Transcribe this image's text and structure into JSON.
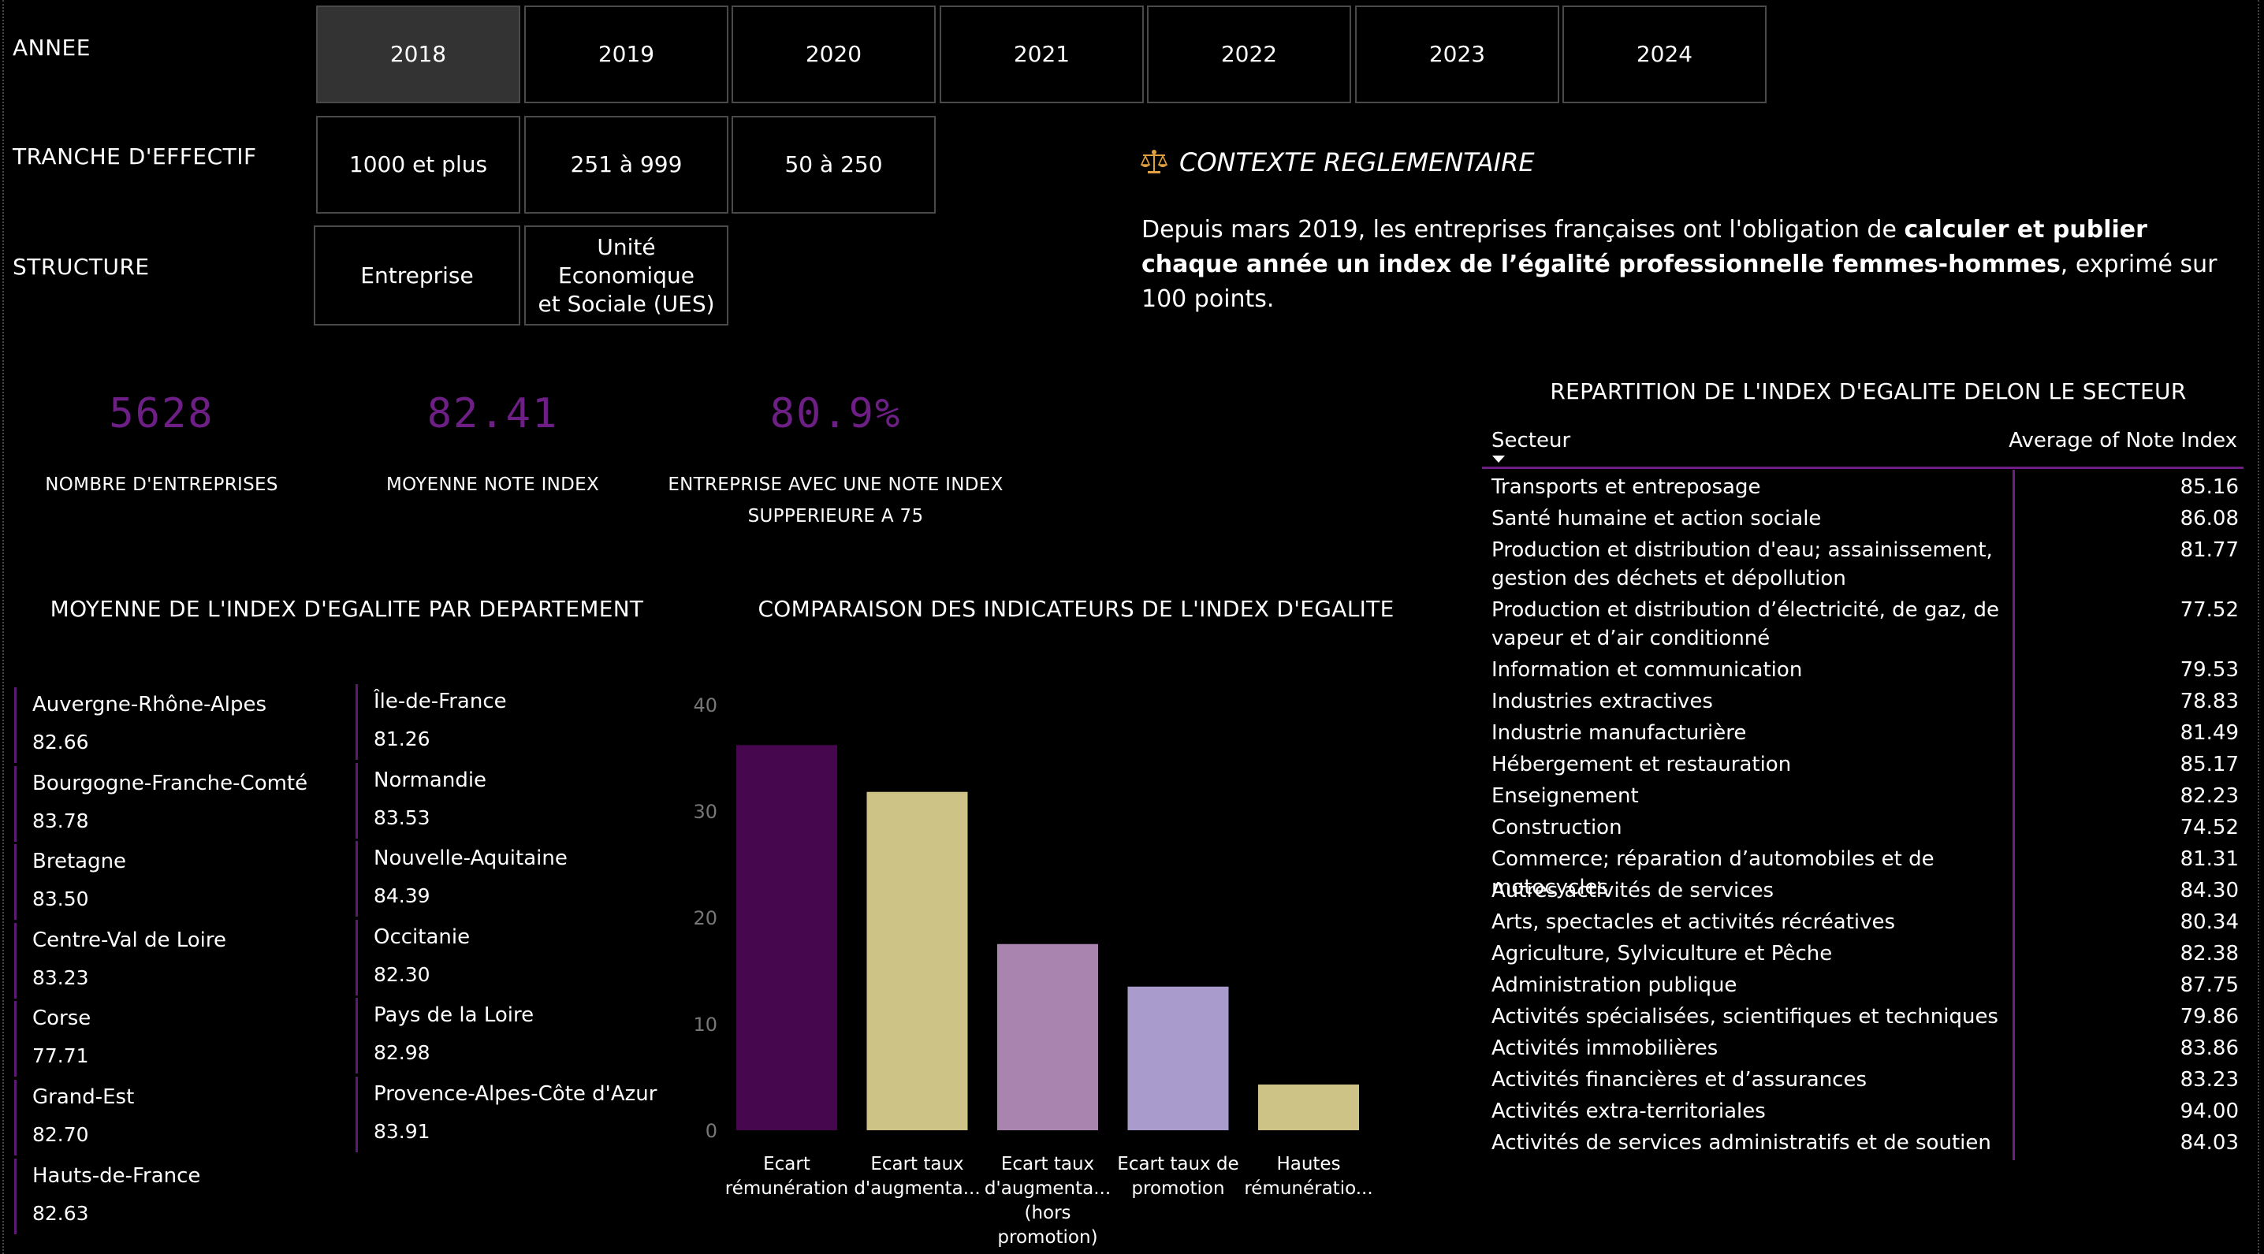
{
  "filters": {
    "annee_label": "ANNEE",
    "effectif_label": "TRANCHE D'EFFECTIF",
    "structure_label": "STRUCTURE",
    "years": [
      "2018",
      "2019",
      "2020",
      "2021",
      "2022",
      "2023",
      "2024"
    ],
    "selected_year": "2018",
    "effectif": [
      "1000 et plus",
      "251 à 999",
      "50 à 250"
    ],
    "structure_a": "Entreprise",
    "structure_b_line1": "Unité Economique",
    "structure_b_line2": "et Sociale (UES)"
  },
  "context": {
    "icon": "balance-scale-icon",
    "title": "CONTEXTE REGLEMENTAIRE",
    "text_1": "Depuis mars 2019, les entreprises françaises ont l'obligation de ",
    "text_bold": "calculer et publier chaque année un index de l’égalité professionnelle femmes-hommes",
    "text_2": ", exprimé sur 100 points."
  },
  "kpis": {
    "companies_value": "5628",
    "companies_label": "NOMBRE D'ENTREPRISES",
    "avg_value": "82.41",
    "avg_label": "MOYENNE NOTE INDEX",
    "pct_value": "80.9%",
    "pct_label_1": "ENTREPRISE AVEC UNE NOTE INDEX",
    "pct_label_2": "SUPPERIEURE A 75"
  },
  "departments": {
    "title": "MOYENNE DE L'INDEX D'EGALITE PAR DEPARTEMENT",
    "col1": [
      {
        "name": "Auvergne-Rhône-Alpes",
        "value": "82.66"
      },
      {
        "name": "Bourgogne-Franche-Comté",
        "value": "83.78"
      },
      {
        "name": "Bretagne",
        "value": "83.50"
      },
      {
        "name": "Centre-Val de Loire",
        "value": "83.23"
      },
      {
        "name": "Corse",
        "value": "77.71"
      },
      {
        "name": "Grand-Est",
        "value": "82.70"
      },
      {
        "name": "Hauts-de-France",
        "value": "82.63"
      }
    ],
    "col2": [
      {
        "name": "Île-de-France",
        "value": "81.26"
      },
      {
        "name": "Normandie",
        "value": "83.53"
      },
      {
        "name": "Nouvelle-Aquitaine",
        "value": "84.39"
      },
      {
        "name": "Occitanie",
        "value": "82.30"
      },
      {
        "name": "Pays de la Loire",
        "value": "82.98"
      },
      {
        "name": "Provence-Alpes-Côte d'Azur",
        "value": "83.91"
      }
    ]
  },
  "chart_data": {
    "type": "bar",
    "title": "COMPARAISON DES INDICATEURS DE L'INDEX D'EGALITE",
    "categories": [
      [
        "Ecart",
        "rémunération"
      ],
      [
        "Ecart taux",
        "d'augmenta..."
      ],
      [
        "Ecart taux",
        "d'augmenta...",
        "(hors",
        "promotion)"
      ],
      [
        "Ecart taux de",
        "promotion"
      ],
      [
        "Hautes",
        "rémunératio..."
      ]
    ],
    "values": [
      36.2,
      31.8,
      17.5,
      13.5,
      4.3
    ],
    "colors": [
      "#46074f",
      "#cdc387",
      "#a884ae",
      "#a99ccc",
      "#cdc387"
    ],
    "yticks": [
      "0",
      "10",
      "20",
      "30",
      "40"
    ],
    "ylim": [
      0,
      40
    ],
    "grid": false
  },
  "sector_table": {
    "title": "REPARTITION DE L'INDEX D'EGALITE DELON LE SECTEUR",
    "col_sector": "Secteur",
    "col_value": "Average of Note Index",
    "rows": [
      {
        "name": "Transports et entreposage",
        "value": "85.16"
      },
      {
        "name": "Santé humaine et action sociale",
        "value": "86.08"
      },
      {
        "name": "Production et distribution d'eau; assainissement,",
        "name2": "gestion des déchets et dépollution",
        "value": "81.77"
      },
      {
        "name": "Production et distribution d’électricité, de gaz, de",
        "name2": "vapeur et d’air conditionné",
        "value": "77.52"
      },
      {
        "name": "Information et communication",
        "value": "79.53"
      },
      {
        "name": "Industries extractives",
        "value": "78.83"
      },
      {
        "name": "Industrie manufacturière",
        "value": "81.49"
      },
      {
        "name": "Hébergement et restauration",
        "value": "85.17"
      },
      {
        "name": "Enseignement",
        "value": "82.23"
      },
      {
        "name": "Construction",
        "value": "74.52"
      },
      {
        "name": "Commerce; réparation d’automobiles et de motocycles",
        "value": "81.31"
      },
      {
        "name": "Autres activités de services",
        "value": "84.30"
      },
      {
        "name": "Arts, spectacles et activités récréatives",
        "value": "80.34"
      },
      {
        "name": "Agriculture, Sylviculture et Pêche",
        "value": "82.38"
      },
      {
        "name": "Administration publique",
        "value": "87.75"
      },
      {
        "name": "Activités spécialisées, scientifiques et techniques",
        "value": "79.86"
      },
      {
        "name": "Activités immobilières",
        "value": "83.86"
      },
      {
        "name": "Activités financières et d’assurances",
        "value": "83.23"
      },
      {
        "name": "Activités extra-territoriales",
        "value": "94.00"
      },
      {
        "name": "Activités de services administratifs et de soutien",
        "value": "84.03"
      }
    ]
  }
}
